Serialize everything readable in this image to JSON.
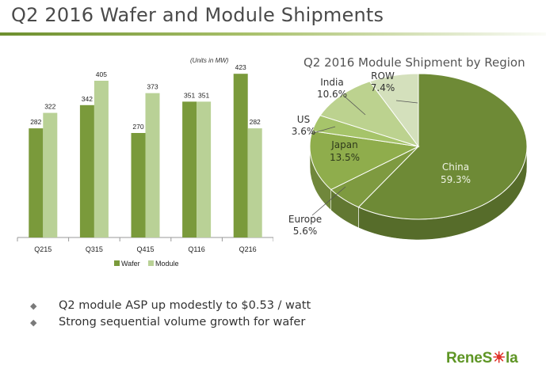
{
  "header": {
    "title": "Q2 2016 Wafer and Module Shipments"
  },
  "colors": {
    "wafer": "#7a9a3b",
    "module": "#b9d196",
    "accent": "#5e9524",
    "logo_red": "#e0332b"
  },
  "bullets": [
    {
      "icon": "diamond-bullet-icon",
      "text": "Q2 module ASP up modestly to $0.53 / watt"
    },
    {
      "icon": "diamond-bullet-icon",
      "text": "Strong sequential volume growth for wafer"
    }
  ],
  "logo": {
    "prefix": "ReneS",
    "sun": "☀",
    "suffix": "la"
  },
  "chart_data": [
    {
      "type": "bar",
      "title": "",
      "note": "(Units in MW)",
      "categories": [
        "Q215",
        "Q315",
        "Q415",
        "Q116",
        "Q216"
      ],
      "series": [
        {
          "name": "Wafer",
          "values": [
            282,
            342,
            270,
            351,
            423
          ]
        },
        {
          "name": "Module",
          "values": [
            322,
            405,
            373,
            351,
            282
          ]
        }
      ],
      "ylim": [
        0,
        450
      ],
      "legend": "bottom",
      "grid": false
    },
    {
      "type": "pie",
      "title": "Q2 2016 Module Shipment by Region",
      "slices": [
        {
          "label": "China",
          "value": 59.3,
          "pct": "59.3%",
          "color": "#6e8a36"
        },
        {
          "label": "Europe",
          "value": 5.6,
          "pct": "5.6%",
          "color": "#7e9a40"
        },
        {
          "label": "Japan",
          "value": 13.5,
          "pct": "13.5%",
          "color": "#8fad4c"
        },
        {
          "label": "US",
          "value": 3.6,
          "pct": "3.6%",
          "color": "#a6c46a"
        },
        {
          "label": "India",
          "value": 10.6,
          "pct": "10.6%",
          "color": "#bcd28f"
        },
        {
          "label": "ROW",
          "value": 7.4,
          "pct": "7.4%",
          "color": "#d4e0bc"
        }
      ],
      "style": "3d-tilted"
    }
  ]
}
